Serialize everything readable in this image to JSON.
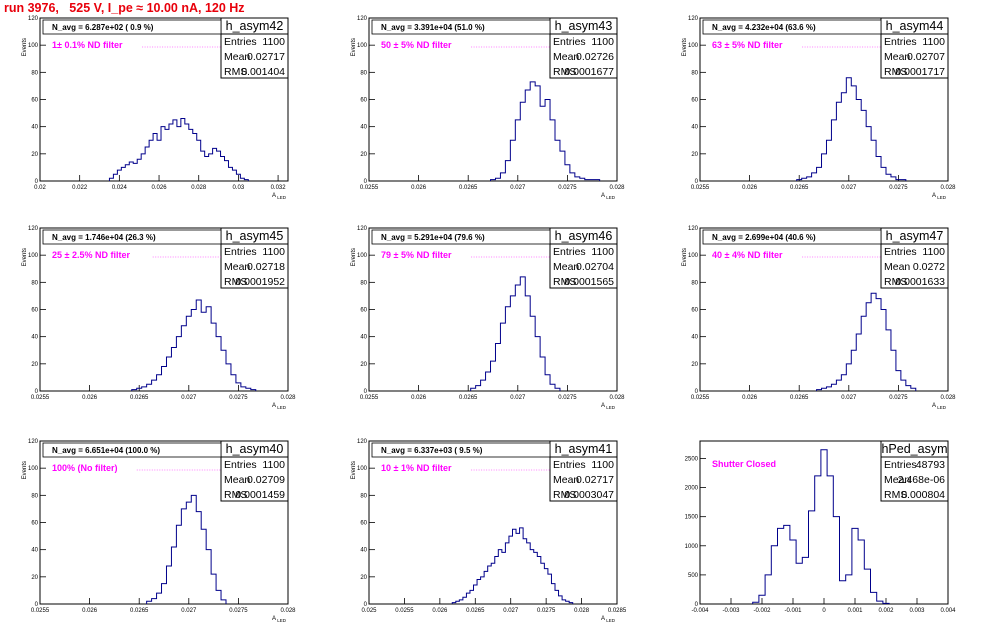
{
  "header": {
    "title": "run 3976,   525 V, I_pe ≈ 10.00 nA, 120 Hz"
  },
  "colors": {
    "title": "#e8000b",
    "annotation": "#ff00ff",
    "histogram": "#00008b",
    "frame": "#000000"
  },
  "chart_data": [
    {
      "type": "histogram",
      "name": "h_asym42",
      "stats": {
        "Entries": "1100",
        "Mean": "0.02717",
        "RMS": "0.001404"
      },
      "annotation": "N_avg = 6.287e+02 ( 0.9 %)",
      "filter_label": "1± 0.1% ND filter",
      "xlabel": "A_LED",
      "ylabel": "Events",
      "xlim": [
        0.02,
        0.0325
      ],
      "ylim": [
        0,
        120
      ],
      "xticks": [
        0.02,
        0.022,
        0.024,
        0.026,
        0.028,
        0.03,
        0.032
      ],
      "xtick_labels": [
        "0.02",
        "0.022",
        "0.024",
        "0.026",
        "0.028",
        "0.03",
        "0.032"
      ],
      "yticks": [
        0,
        20,
        40,
        60,
        80,
        100,
        120
      ],
      "x": [
        0.0236,
        0.0238,
        0.024,
        0.0242,
        0.0244,
        0.0246,
        0.0248,
        0.025,
        0.0252,
        0.0254,
        0.0256,
        0.0258,
        0.026,
        0.0262,
        0.0264,
        0.0266,
        0.0268,
        0.027,
        0.0272,
        0.0274,
        0.0276,
        0.0278,
        0.028,
        0.0282,
        0.0284,
        0.0286,
        0.0288,
        0.029,
        0.0292,
        0.0294,
        0.0296,
        0.0298,
        0.03,
        0.0302,
        0.0304
      ],
      "values": [
        2,
        5,
        8,
        10,
        12,
        14,
        13,
        16,
        20,
        25,
        30,
        35,
        30,
        40,
        38,
        42,
        45,
        40,
        46,
        42,
        38,
        35,
        30,
        22,
        18,
        20,
        24,
        22,
        18,
        15,
        10,
        8,
        5,
        2,
        1
      ]
    },
    {
      "type": "histogram",
      "name": "h_asym43",
      "stats": {
        "Entries": "1100",
        "Mean": "0.02726",
        "RMS": "0.0001677"
      },
      "annotation": "N_avg = 3.391e+04 (51.0 %)",
      "filter_label": "50 ± 5% ND filter",
      "xlabel": "A_LED",
      "ylabel": "Events",
      "xlim": [
        0.0255,
        0.028
      ],
      "ylim": [
        0,
        120
      ],
      "xticks": [
        0.0255,
        0.026,
        0.0265,
        0.027,
        0.0275,
        0.028
      ],
      "xtick_labels": [
        "0.0255",
        "0.026",
        "0.0265",
        "0.027",
        "0.0275",
        "0.028"
      ],
      "yticks": [
        0,
        20,
        40,
        60,
        80,
        100,
        120
      ],
      "x": [
        0.02675,
        0.0268,
        0.02685,
        0.0269,
        0.02695,
        0.027,
        0.02705,
        0.0271,
        0.02715,
        0.0272,
        0.02725,
        0.0273,
        0.02735,
        0.0274,
        0.02745,
        0.0275,
        0.02755,
        0.0276,
        0.02765,
        0.0277,
        0.02775,
        0.0278
      ],
      "values": [
        1,
        2,
        6,
        15,
        30,
        45,
        58,
        67,
        73,
        70,
        55,
        60,
        45,
        30,
        22,
        12,
        6,
        3,
        2,
        1,
        1,
        1
      ]
    },
    {
      "type": "histogram",
      "name": "h_asym44",
      "stats": {
        "Entries": "1100",
        "Mean": "0.02707",
        "RMS": "0.0001717"
      },
      "annotation": "N_avg = 4.232e+04 (63.6 %)",
      "filter_label": "63 ± 5% ND filter",
      "xlabel": "A_LED",
      "ylabel": "Events",
      "xlim": [
        0.0255,
        0.028
      ],
      "ylim": [
        0,
        120
      ],
      "xticks": [
        0.0255,
        0.026,
        0.0265,
        0.027,
        0.0275,
        0.028
      ],
      "xtick_labels": [
        "0.0255",
        "0.026",
        "0.0265",
        "0.027",
        "0.0275",
        "0.028"
      ],
      "yticks": [
        0,
        20,
        40,
        60,
        80,
        100,
        120
      ],
      "x": [
        0.0265,
        0.02655,
        0.0266,
        0.02665,
        0.0267,
        0.02675,
        0.0268,
        0.02685,
        0.0269,
        0.02695,
        0.027,
        0.02705,
        0.0271,
        0.02715,
        0.0272,
        0.02725,
        0.0273,
        0.02735,
        0.0274,
        0.02745,
        0.0275,
        0.02755
      ],
      "values": [
        1,
        2,
        3,
        6,
        10,
        20,
        30,
        45,
        58,
        65,
        76,
        70,
        60,
        52,
        40,
        30,
        18,
        10,
        5,
        3,
        1,
        1
      ]
    },
    {
      "type": "histogram",
      "name": "h_asym45",
      "stats": {
        "Entries": "1100",
        "Mean": "0.02718",
        "RMS": "0.0001952"
      },
      "annotation": "N_avg = 1.746e+04 (26.3 %)",
      "filter_label": "25 ± 2.5% ND filter",
      "xlabel": "A_LED",
      "ylabel": "Events",
      "xlim": [
        0.0255,
        0.028
      ],
      "ylim": [
        0,
        120
      ],
      "xticks": [
        0.0255,
        0.026,
        0.0265,
        0.027,
        0.0275,
        0.028
      ],
      "xtick_labels": [
        "0.0255",
        "0.026",
        "0.0265",
        "0.027",
        "0.0275",
        "0.028"
      ],
      "yticks": [
        0,
        20,
        40,
        60,
        80,
        100,
        120
      ],
      "x": [
        0.02645,
        0.0265,
        0.02655,
        0.0266,
        0.02665,
        0.0267,
        0.02675,
        0.0268,
        0.02685,
        0.0269,
        0.02695,
        0.027,
        0.02705,
        0.0271,
        0.02715,
        0.0272,
        0.02725,
        0.0273,
        0.02735,
        0.0274,
        0.02745,
        0.0275,
        0.02755,
        0.0276,
        0.02765
      ],
      "values": [
        1,
        2,
        3,
        5,
        8,
        12,
        18,
        25,
        32,
        40,
        48,
        55,
        60,
        67,
        58,
        62,
        50,
        40,
        30,
        20,
        12,
        6,
        3,
        2,
        1
      ]
    },
    {
      "type": "histogram",
      "name": "h_asym46",
      "stats": {
        "Entries": "1100",
        "Mean": "0.02704",
        "RMS": "0.0001565"
      },
      "annotation": "N_avg = 5.291e+04 (79.6 %)",
      "filter_label": "79 ± 5% ND filter",
      "xlabel": "A_LED",
      "ylabel": "Events",
      "xlim": [
        0.0255,
        0.028
      ],
      "ylim": [
        0,
        120
      ],
      "xticks": [
        0.0255,
        0.026,
        0.0265,
        0.027,
        0.0275,
        0.028
      ],
      "xtick_labels": [
        "0.0255",
        "0.026",
        "0.0265",
        "0.027",
        "0.0275",
        "0.028"
      ],
      "yticks": [
        0,
        20,
        40,
        60,
        80,
        100,
        120
      ],
      "x": [
        0.02655,
        0.0266,
        0.02665,
        0.0267,
        0.02675,
        0.0268,
        0.02685,
        0.0269,
        0.02695,
        0.027,
        0.02705,
        0.0271,
        0.02715,
        0.0272,
        0.02725,
        0.0273,
        0.02735,
        0.0274
      ],
      "values": [
        2,
        4,
        8,
        14,
        22,
        35,
        50,
        62,
        70,
        78,
        84,
        70,
        55,
        40,
        25,
        12,
        5,
        2
      ]
    },
    {
      "type": "histogram",
      "name": "h_asym47",
      "stats": {
        "Entries": "1100",
        "Mean": "0.0272",
        "RMS": "0.0001633"
      },
      "annotation": "N_avg = 2.699e+04 (40.6 %)",
      "filter_label": "40 ± 4% ND filter",
      "xlabel": "A_LED",
      "ylabel": "Events",
      "xlim": [
        0.0255,
        0.028
      ],
      "ylim": [
        0,
        120
      ],
      "xticks": [
        0.0255,
        0.026,
        0.0265,
        0.027,
        0.0275,
        0.028
      ],
      "xtick_labels": [
        "0.0255",
        "0.026",
        "0.0265",
        "0.027",
        "0.0275",
        "0.028"
      ],
      "yticks": [
        0,
        20,
        40,
        60,
        80,
        100,
        120
      ],
      "x": [
        0.0267,
        0.02675,
        0.0268,
        0.02685,
        0.0269,
        0.02695,
        0.027,
        0.02705,
        0.0271,
        0.02715,
        0.0272,
        0.02725,
        0.0273,
        0.02735,
        0.0274,
        0.02745,
        0.0275,
        0.02755,
        0.0276,
        0.02765
      ],
      "values": [
        1,
        2,
        3,
        5,
        8,
        12,
        20,
        30,
        42,
        55,
        65,
        72,
        68,
        60,
        45,
        30,
        15,
        8,
        4,
        2
      ]
    },
    {
      "type": "histogram",
      "name": "h_asym40",
      "stats": {
        "Entries": "1100",
        "Mean": "0.02709",
        "RMS": "0.0001459"
      },
      "annotation": "N_avg = 6.651e+04 (100.0 %)",
      "filter_label": "100% (No filter)",
      "xlabel": "A_LED",
      "ylabel": "Events",
      "xlim": [
        0.0255,
        0.028
      ],
      "ylim": [
        0,
        120
      ],
      "xticks": [
        0.0255,
        0.026,
        0.0265,
        0.027,
        0.0275,
        0.028
      ],
      "xtick_labels": [
        "0.0255",
        "0.026",
        "0.0265",
        "0.027",
        "0.0275",
        "0.028"
      ],
      "yticks": [
        0,
        20,
        40,
        60,
        80,
        100,
        120
      ],
      "x": [
        0.0266,
        0.02665,
        0.0267,
        0.02675,
        0.0268,
        0.02685,
        0.0269,
        0.02695,
        0.027,
        0.02705,
        0.0271,
        0.02715,
        0.0272,
        0.02725,
        0.0273,
        0.02735
      ],
      "values": [
        2,
        4,
        8,
        15,
        28,
        42,
        58,
        70,
        75,
        80,
        68,
        55,
        40,
        22,
        10,
        3
      ]
    },
    {
      "type": "histogram",
      "name": "h_asym41",
      "stats": {
        "Entries": "1100",
        "Mean": "0.02717",
        "RMS": "0.0003047"
      },
      "annotation": "N_avg = 6.337e+03 ( 9.5 %)",
      "filter_label": "10 ± 1% ND filter",
      "xlabel": "A_LED",
      "ylabel": "Events",
      "xlim": [
        0.025,
        0.0285
      ],
      "ylim": [
        0,
        120
      ],
      "xticks": [
        0.025,
        0.0255,
        0.026,
        0.0265,
        0.027,
        0.0275,
        0.028,
        0.0285
      ],
      "xtick_labels": [
        "0.025",
        "0.0255",
        "0.026",
        "0.0265",
        "0.027",
        "0.0275",
        "0.028",
        "0.0285"
      ],
      "yticks": [
        0,
        20,
        40,
        60,
        80,
        100,
        120
      ],
      "x": [
        0.0262,
        0.02625,
        0.0263,
        0.02635,
        0.0264,
        0.02645,
        0.0265,
        0.02655,
        0.0266,
        0.02665,
        0.0267,
        0.02675,
        0.0268,
        0.02685,
        0.0269,
        0.02695,
        0.027,
        0.02705,
        0.0271,
        0.02715,
        0.0272,
        0.02725,
        0.0273,
        0.02735,
        0.0274,
        0.02745,
        0.0275,
        0.02755,
        0.0276,
        0.02765,
        0.0277,
        0.02775,
        0.0278,
        0.02785
      ],
      "values": [
        1,
        2,
        3,
        5,
        8,
        10,
        14,
        18,
        20,
        24,
        28,
        30,
        35,
        40,
        38,
        45,
        50,
        55,
        52,
        56,
        48,
        45,
        40,
        38,
        35,
        30,
        26,
        22,
        15,
        10,
        6,
        3,
        2,
        1
      ]
    },
    {
      "type": "histogram",
      "name": "hPed_asym",
      "stats": {
        "Entries": "48793",
        "Mean": "2.468e-06",
        "RMS": "0.000804"
      },
      "annotation": "",
      "filter_label": "Shutter Closed",
      "xlabel": "",
      "ylabel": "",
      "xlim": [
        -0.004,
        0.004
      ],
      "ylim": [
        0,
        2800
      ],
      "xticks": [
        -0.004,
        -0.003,
        -0.002,
        -0.001,
        0,
        0.001,
        0.002,
        0.003,
        0.004
      ],
      "xtick_labels": [
        "-0.004",
        "-0.003",
        "-0.002",
        "-0.001",
        "0",
        "0.001",
        "0.002",
        "0.003",
        "0.004"
      ],
      "yticks": [
        0,
        500,
        1000,
        1500,
        2000,
        2500
      ],
      "x": [
        -0.0022,
        -0.002,
        -0.0018,
        -0.0016,
        -0.0014,
        -0.0012,
        -0.001,
        -0.0008,
        -0.0006,
        -0.0004,
        -0.0002,
        0,
        0.0002,
        0.0004,
        0.0006,
        0.0008,
        0.001,
        0.0012,
        0.0014,
        0.0016,
        0.0018,
        0.002
      ],
      "values": [
        30,
        150,
        500,
        1000,
        1300,
        1350,
        1100,
        700,
        800,
        1600,
        2200,
        2650,
        2200,
        1500,
        400,
        500,
        1300,
        1100,
        600,
        200,
        50,
        10
      ]
    }
  ]
}
